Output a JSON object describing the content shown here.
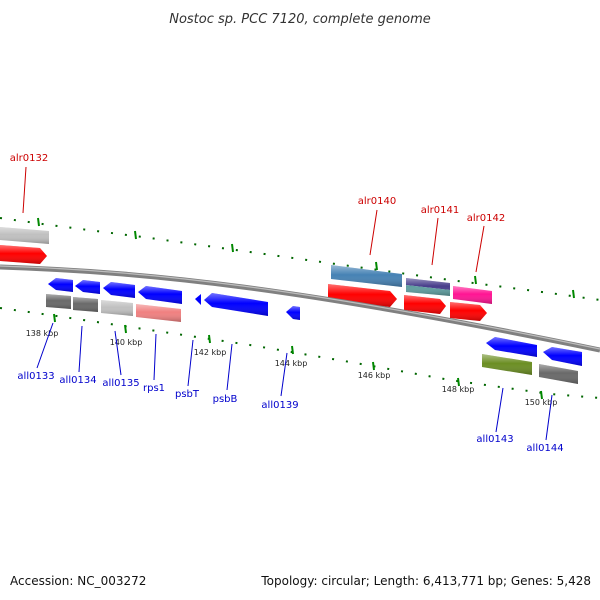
{
  "title": "Nostoc sp. PCC 7120, complete genome",
  "footer": {
    "accession": "Accession: NC_003272",
    "summary": "Topology: circular; Length: 6,413,771 bp; Genes: 5,428"
  },
  "kbp_labels": [
    "138 kbp",
    "140 kbp",
    "142 kbp",
    "144 kbp",
    "146 kbp",
    "148 kbp",
    "150 kbp"
  ],
  "genes_forward": [
    "alr0132",
    "alr0140",
    "alr0141",
    "alr0142"
  ],
  "genes_reverse": [
    "all0133",
    "all0134",
    "all0135",
    "rps1",
    "psbT",
    "psbB",
    "all0139",
    "all0143",
    "all0144"
  ],
  "colors": {
    "backbone": "#808080",
    "forward_cds": "#ff0000",
    "reverse_cds": "#0000ff",
    "forward_label": "#cc0000",
    "reverse_label": "#0000cc",
    "tick": "#008800",
    "dot": "#006600",
    "cog_steelblue": "#4682b4",
    "cog_slateblue": "#483d8b",
    "cog_teal": "#5f9ea0",
    "cog_magenta": "#ff1493",
    "cog_lightgray": "#c0c0c0",
    "cog_darkgray": "#696969",
    "cog_salmon": "#f08080",
    "cog_olive": "#6b8e23"
  }
}
